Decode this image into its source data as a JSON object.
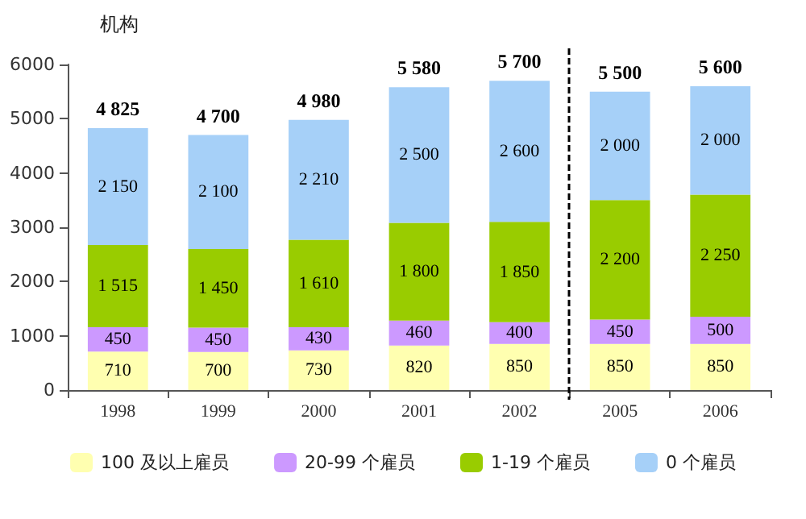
{
  "chart_data": {
    "type": "bar",
    "stacked": true,
    "ylabel": "机构",
    "categories": [
      "1998",
      "1999",
      "2000",
      "2001",
      "2002",
      "2005",
      "2006"
    ],
    "series": [
      {
        "name": "100 及以上雇员",
        "color": "#ffffb0",
        "values": [
          710,
          700,
          730,
          820,
          850,
          850,
          850
        ],
        "value_labels": [
          "710",
          "700",
          "730",
          "820",
          "850",
          "850",
          "850"
        ]
      },
      {
        "name": "20-99 个雇员",
        "color": "#cc99ff",
        "values": [
          450,
          450,
          430,
          460,
          400,
          450,
          500
        ],
        "value_labels": [
          "450",
          "450",
          "430",
          "460",
          "400",
          "450",
          "500"
        ]
      },
      {
        "name": "1-19 个雇员",
        "color": "#99cc00",
        "values": [
          1515,
          1450,
          1610,
          1800,
          1850,
          2200,
          2250
        ],
        "value_labels": [
          "1 515",
          "1 450",
          "1 610",
          "1 800",
          "1 850",
          "2 200",
          "2 250"
        ]
      },
      {
        "name": "0 个雇员",
        "color": "#a6d0f8",
        "values": [
          2150,
          2100,
          2210,
          2500,
          2600,
          2000,
          2000
        ],
        "value_labels": [
          "2 150",
          "2 100",
          "2 210",
          "2 500",
          "2 600",
          "2 000",
          "2 000"
        ]
      }
    ],
    "totals": [
      "4 825",
      "4 700",
      "4 980",
      "5 580",
      "5 700",
      "5 500",
      "5 600"
    ],
    "ylim": [
      0,
      6000
    ],
    "yticks": [
      0,
      1000,
      2000,
      3000,
      4000,
      5000,
      6000
    ],
    "legend": "bottom"
  }
}
